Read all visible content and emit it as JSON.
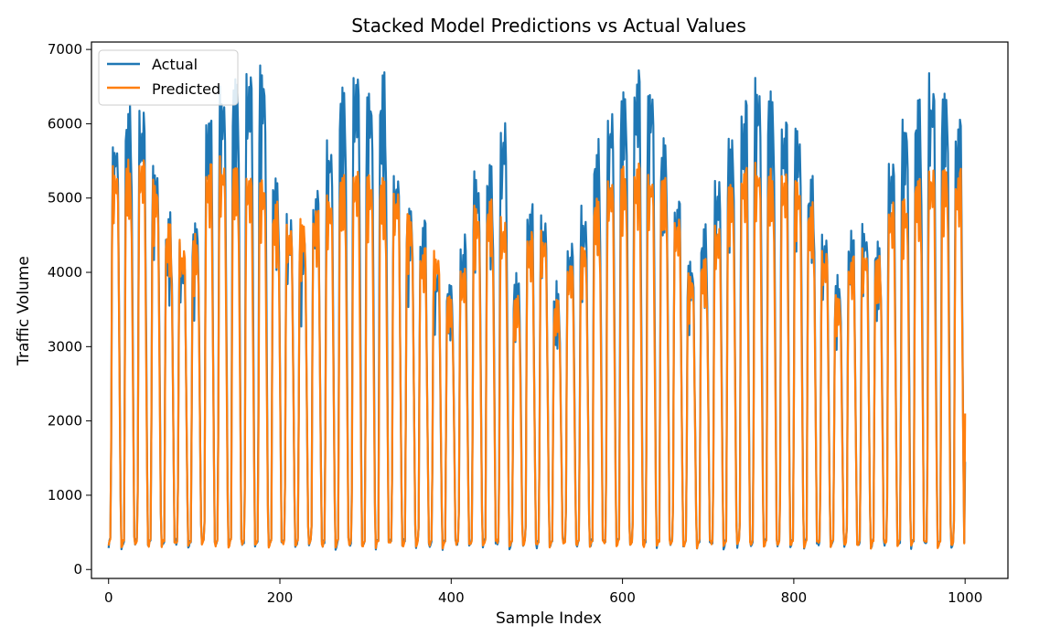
{
  "chart_data": {
    "type": "line",
    "title": "Stacked Model Predictions vs Actual Values",
    "xlabel": "Sample Index",
    "ylabel": "Traffic Volume",
    "xlim": [
      -20,
      1050
    ],
    "ylim": [
      -120,
      7100
    ],
    "xticks": [
      0,
      200,
      400,
      600,
      800,
      1000
    ],
    "yticks": [
      0,
      1000,
      2000,
      3000,
      4000,
      5000,
      6000,
      7000
    ],
    "grid": false,
    "legend": {
      "position": "upper-left"
    },
    "series": [
      {
        "name": "Actual",
        "color": "#1f77b4",
        "peaks": [
          [
            0,
            0,
            5800
          ],
          [
            1,
            1,
            6200
          ],
          [
            2,
            1,
            6150
          ],
          [
            3,
            1,
            5500
          ],
          [
            4,
            1,
            4800
          ],
          [
            5,
            1,
            4300
          ],
          [
            6,
            1,
            4700
          ],
          [
            7,
            1,
            6100
          ],
          [
            8,
            1,
            6400
          ],
          [
            9,
            1,
            6600
          ],
          [
            10,
            1,
            6750
          ],
          [
            11,
            1,
            6700
          ],
          [
            12,
            1,
            5300
          ],
          [
            13,
            1,
            4700
          ],
          [
            14,
            1,
            4600
          ],
          [
            15,
            1,
            5000
          ],
          [
            16,
            1,
            5700
          ],
          [
            17,
            1,
            6500
          ],
          [
            18,
            1,
            6700
          ],
          [
            19,
            1,
            6450
          ],
          [
            20,
            1,
            6600
          ],
          [
            21,
            0,
            5300
          ],
          [
            22,
            0,
            4900
          ],
          [
            23,
            0,
            4600
          ],
          [
            24,
            1,
            4100
          ],
          [
            25,
            1,
            3900
          ],
          [
            26,
            1,
            4400
          ],
          [
            27,
            1,
            5300
          ],
          [
            28,
            1,
            5500
          ],
          [
            29,
            1,
            6000
          ],
          [
            30,
            1,
            4000
          ],
          [
            31,
            1,
            4800
          ],
          [
            32,
            1,
            4800
          ],
          [
            33,
            1,
            3800
          ],
          [
            34,
            1,
            4400
          ],
          [
            35,
            1,
            4800
          ],
          [
            36,
            1,
            5700
          ],
          [
            37,
            1,
            6100
          ],
          [
            38,
            1,
            6500
          ],
          [
            39,
            1,
            6600
          ],
          [
            40,
            1,
            6500
          ],
          [
            41,
            0,
            5800
          ],
          [
            42,
            0,
            5000
          ],
          [
            43,
            0,
            4200
          ],
          [
            44,
            1,
            4600
          ],
          [
            45,
            1,
            5200
          ],
          [
            46,
            1,
            5800
          ],
          [
            47,
            1,
            6200
          ],
          [
            48,
            1,
            6550
          ],
          [
            49,
            1,
            6400
          ],
          [
            50,
            1,
            6050
          ],
          [
            51,
            1,
            5900
          ],
          [
            52,
            0,
            5300
          ],
          [
            53,
            0,
            4500
          ],
          [
            54,
            1,
            3900
          ],
          [
            55,
            1,
            4500
          ],
          [
            56,
            1,
            4600
          ],
          [
            57,
            1,
            4400
          ],
          [
            58,
            1,
            5500
          ],
          [
            59,
            1,
            6000
          ],
          [
            60,
            1,
            6300
          ],
          [
            61,
            1,
            6600
          ],
          [
            62,
            1,
            6500
          ],
          [
            63,
            1,
            6000
          ],
          [
            64,
            1,
            4600
          ]
        ]
      },
      {
        "name": "Predicted",
        "color": "#ff7f0e",
        "peaks": [
          [
            0,
            0,
            5400
          ],
          [
            1,
            1,
            5450
          ],
          [
            2,
            1,
            5500
          ],
          [
            3,
            1,
            5200
          ],
          [
            4,
            1,
            4600
          ],
          [
            5,
            1,
            4400
          ],
          [
            6,
            1,
            4500
          ],
          [
            7,
            1,
            5400
          ],
          [
            8,
            1,
            5500
          ],
          [
            9,
            1,
            5450
          ],
          [
            10,
            1,
            5300
          ],
          [
            11,
            1,
            5250
          ],
          [
            12,
            1,
            4900
          ],
          [
            13,
            1,
            4600
          ],
          [
            14,
            1,
            4700
          ],
          [
            15,
            1,
            4800
          ],
          [
            16,
            1,
            5000
          ],
          [
            17,
            1,
            5300
          ],
          [
            18,
            1,
            5350
          ],
          [
            19,
            1,
            5300
          ],
          [
            20,
            1,
            5300
          ],
          [
            21,
            0,
            5100
          ],
          [
            22,
            0,
            4800
          ],
          [
            23,
            0,
            4300
          ],
          [
            24,
            1,
            4300
          ],
          [
            25,
            1,
            3700
          ],
          [
            26,
            1,
            4000
          ],
          [
            27,
            1,
            4900
          ],
          [
            28,
            1,
            4950
          ],
          [
            29,
            1,
            4700
          ],
          [
            30,
            1,
            3700
          ],
          [
            31,
            1,
            4500
          ],
          [
            32,
            1,
            4500
          ],
          [
            33,
            1,
            3600
          ],
          [
            34,
            1,
            4100
          ],
          [
            35,
            1,
            4400
          ],
          [
            36,
            1,
            5000
          ],
          [
            37,
            1,
            5300
          ],
          [
            38,
            1,
            5400
          ],
          [
            39,
            1,
            5400
          ],
          [
            40,
            1,
            5350
          ],
          [
            41,
            0,
            5300
          ],
          [
            42,
            0,
            4700
          ],
          [
            43,
            0,
            4000
          ],
          [
            44,
            1,
            4200
          ],
          [
            45,
            1,
            4600
          ],
          [
            46,
            1,
            5200
          ],
          [
            47,
            1,
            5400
          ],
          [
            48,
            1,
            5450
          ],
          [
            49,
            1,
            5350
          ],
          [
            50,
            1,
            5300
          ],
          [
            51,
            1,
            5200
          ],
          [
            52,
            0,
            4900
          ],
          [
            53,
            0,
            4300
          ],
          [
            54,
            1,
            3700
          ],
          [
            55,
            1,
            4200
          ],
          [
            56,
            1,
            4300
          ],
          [
            57,
            1,
            4200
          ],
          [
            58,
            1,
            4900
          ],
          [
            59,
            1,
            5000
          ],
          [
            60,
            1,
            5300
          ],
          [
            61,
            1,
            5400
          ],
          [
            62,
            1,
            5400
          ],
          [
            63,
            1,
            5350
          ],
          [
            64,
            1,
            5350
          ]
        ]
      }
    ]
  }
}
